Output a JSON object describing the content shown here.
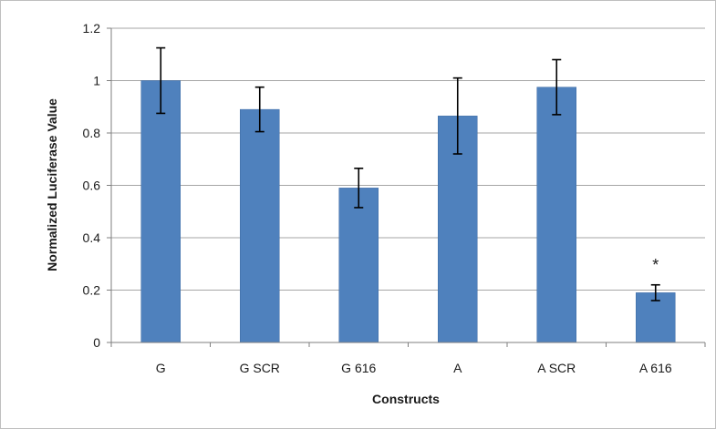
{
  "chart_data": {
    "type": "bar",
    "title": "",
    "xlabel": "Constructs",
    "ylabel": "Normalized Luciferase Value",
    "categories": [
      "G",
      "G SCR",
      "G 616",
      "A",
      "A SCR",
      "A 616"
    ],
    "values": [
      1.0,
      0.89,
      0.59,
      0.865,
      0.975,
      0.19
    ],
    "error": [
      0.125,
      0.085,
      0.075,
      0.145,
      0.105,
      0.03
    ],
    "ylim": [
      0,
      1.2
    ],
    "yticks": [
      0,
      0.2,
      0.4,
      0.6,
      0.8,
      1.0,
      1.2
    ],
    "ytick_labels": [
      "0",
      "0.2",
      "0.4",
      "0.6",
      "0.8",
      "1",
      "1.2"
    ],
    "annotations": [
      {
        "category": "A 616",
        "text": "*"
      }
    ],
    "grid": true,
    "legend": "none",
    "colors": {
      "bar": "#4f81bd",
      "bar_edge": "#3c6aa3",
      "grid": "#a6a6a6",
      "axis": "#7f7f7f",
      "errorbar": "#000000"
    }
  }
}
